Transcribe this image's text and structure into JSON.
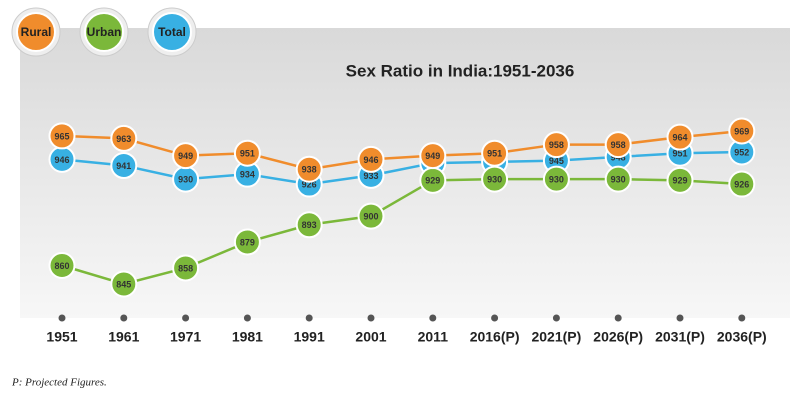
{
  "chart_data": {
    "type": "line",
    "title": "Sex Ratio in India:1951-2036",
    "categories": [
      "1951",
      "1961",
      "1971",
      "1981",
      "1991",
      "2001",
      "2011",
      "2016(P)",
      "2021(P)",
      "2026(P)",
      "2031(P)",
      "2036(P)"
    ],
    "series": [
      {
        "name": "Rural",
        "color": "#f08c2c",
        "values": [
          965,
          963,
          949,
          951,
          938,
          946,
          949,
          951,
          958,
          958,
          964,
          969
        ]
      },
      {
        "name": "Urban",
        "color": "#7bb83a",
        "values": [
          860,
          845,
          858,
          879,
          893,
          900,
          929,
          930,
          930,
          930,
          929,
          926
        ]
      },
      {
        "name": "Total",
        "color": "#38b0e3",
        "values": [
          946,
          941,
          930,
          934,
          926,
          933,
          943,
          944,
          945,
          948,
          951,
          952
        ]
      }
    ],
    "note": "P: Projected Figures."
  }
}
